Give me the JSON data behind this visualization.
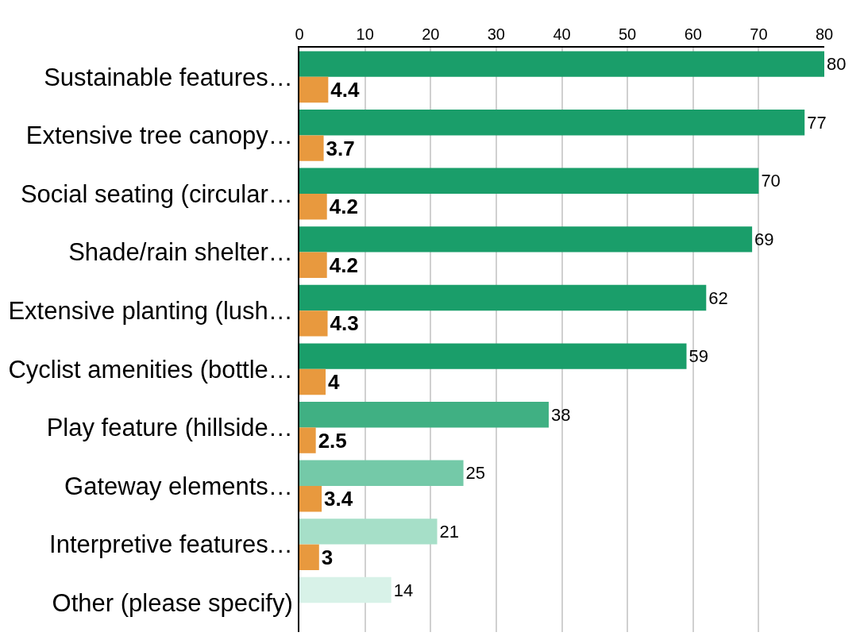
{
  "chart_data": {
    "type": "bar",
    "orientation": "horizontal",
    "categories": [
      "Sustainable features…",
      "Extensive tree canopy…",
      "Social seating (circular…",
      "Shade/rain shelter…",
      "Extensive planting (lush…",
      "Cyclist amenities (bottle…",
      "Play feature (hillside…",
      "Gateway elements…",
      "Interpretive features…",
      "Other (please specify)"
    ],
    "series": [
      {
        "colors": [
          "#1a9e6a",
          "#1a9e6a",
          "#1a9e6a",
          "#1a9e6a",
          "#1a9e6a",
          "#1a9e6a",
          "#40b083",
          "#74c9a8",
          "#a6dfc8",
          "#d8f2e8"
        ],
        "values": [
          80,
          77,
          70,
          69,
          62,
          59,
          38,
          25,
          21,
          14
        ]
      },
      {
        "color": "#e8993e",
        "values": [
          4.4,
          3.7,
          4.2,
          4.2,
          4.3,
          4,
          2.5,
          3.4,
          3,
          null
        ]
      }
    ],
    "xlim": [
      0,
      80
    ],
    "xticks": [
      0,
      10,
      20,
      30,
      40,
      50,
      60,
      70,
      80
    ],
    "grid": "x",
    "data_labels": true,
    "legend": false
  }
}
